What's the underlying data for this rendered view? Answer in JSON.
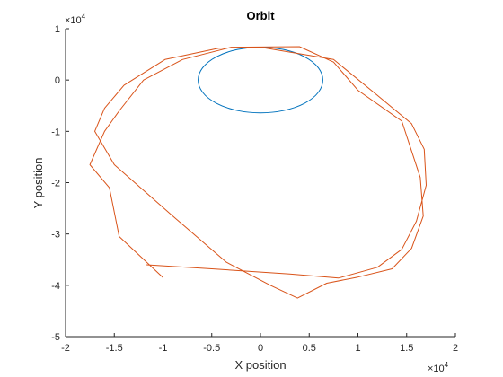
{
  "chart_data": {
    "type": "line",
    "title": "Orbit",
    "xlabel": "X position",
    "ylabel": "Y position",
    "xlim": [
      -20000,
      20000
    ],
    "ylim": [
      -50000,
      10000
    ],
    "x_ticks": [
      -20000,
      -15000,
      -10000,
      -5000,
      0,
      5000,
      10000,
      15000,
      20000
    ],
    "x_tick_labels": [
      "-2",
      "-1.5",
      "-1",
      "-0.5",
      "0",
      "0.5",
      "1",
      "1.5",
      "2"
    ],
    "y_ticks": [
      -50000,
      -40000,
      -30000,
      -20000,
      -10000,
      0,
      10000
    ],
    "y_tick_labels": [
      "-5",
      "-4",
      "-3",
      "-2",
      "-1",
      "0",
      "1"
    ],
    "x_exponent": {
      "base": "×10",
      "power": "4"
    },
    "y_exponent": {
      "base": "×10",
      "power": "4"
    },
    "grid": false,
    "legend": "none",
    "series": [
      {
        "color": "#0072BD",
        "shape": "ellipse",
        "center": [
          0,
          0
        ],
        "radii": [
          6400,
          6400
        ]
      },
      {
        "color": "#D95319",
        "shape": "polyline",
        "x": [
          -11700,
          -5000,
          3000,
          8000,
          12000,
          14500,
          16000,
          17000,
          16800,
          15500,
          12000,
          7500,
          0,
          -4300,
          -9800,
          -14000,
          -16000,
          -17000,
          -15000,
          -9000,
          -3500,
          1000,
          3800,
          6800,
          10000,
          13500,
          15500,
          16700,
          16400,
          14500,
          10000,
          7500,
          4000,
          -3000,
          -8000,
          -12000,
          -14500,
          -16000,
          -17500,
          -15500,
          -14500,
          -10000
        ],
        "y": [
          -36000,
          -36800,
          -37800,
          -38600,
          -36500,
          -33000,
          -27500,
          -20500,
          -13500,
          -8500,
          -3000,
          4000,
          6400,
          6200,
          4000,
          -1000,
          -5500,
          -10000,
          -16500,
          -26500,
          -35500,
          -40000,
          -42500,
          -39600,
          -38400,
          -36800,
          -32800,
          -26500,
          -19000,
          -8000,
          -2000,
          3500,
          6500,
          6400,
          4000,
          0,
          -6000,
          -10000,
          -16500,
          -21000,
          -30500,
          -38500
        ]
      }
    ]
  }
}
